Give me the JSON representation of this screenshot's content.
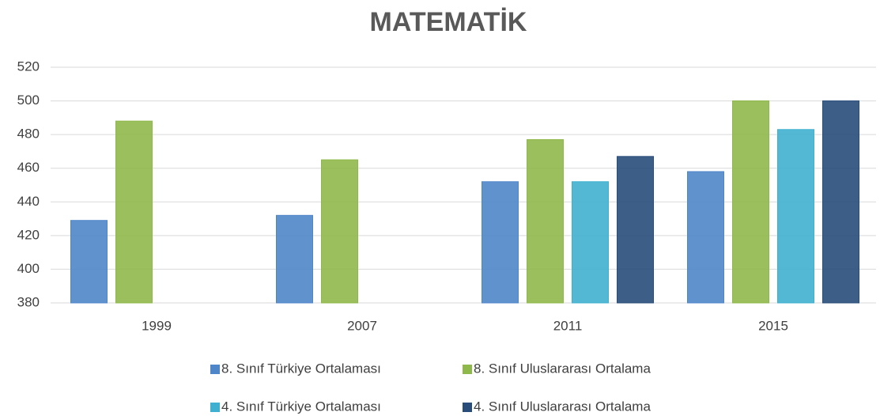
{
  "chart_data": {
    "type": "bar",
    "title": "MATEMATİK",
    "categories": [
      "1999",
      "2007",
      "2011",
      "2015"
    ],
    "series": [
      {
        "name": "8. Sınıf Türkiye Ortalaması",
        "color": "#4f86c9",
        "values": [
          429,
          432,
          452,
          458
        ]
      },
      {
        "name": "8. Sınıf Uluslararası Ortalama",
        "color": "#8fb84a",
        "values": [
          488,
          465,
          477,
          500
        ]
      },
      {
        "name": "4. Sınıf Türkiye Ortalaması",
        "color": "#3fb0cf",
        "values": [
          null,
          null,
          452,
          483
        ]
      },
      {
        "name": "4. Sınıf Uluslararası Ortalama",
        "color": "#284d7a",
        "values": [
          null,
          null,
          467,
          500
        ]
      }
    ],
    "ylim": [
      380,
      520
    ],
    "yticks": [
      380,
      400,
      420,
      440,
      460,
      480,
      500,
      520
    ],
    "grid": true,
    "legend": "bottom"
  }
}
